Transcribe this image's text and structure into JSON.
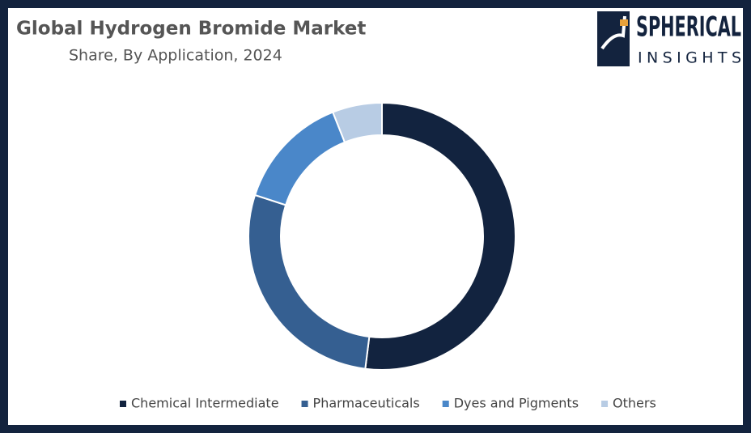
{
  "chart_data": {
    "type": "donut",
    "title": "Global Hydrogen Bromide Market",
    "subtitle": "Share, By Application, 2024",
    "logo": {
      "name": "SPHERICAL",
      "tagline": "INSIGHTS"
    },
    "categories": [
      "Chemical Intermediate",
      "Pharmaceuticals",
      "Dyes and Pigments",
      "Others"
    ],
    "values": [
      52,
      28,
      14,
      6
    ],
    "colors": [
      "#12233f",
      "#355f91",
      "#4a87c9",
      "#b8cce4"
    ],
    "legend": "bottom"
  }
}
